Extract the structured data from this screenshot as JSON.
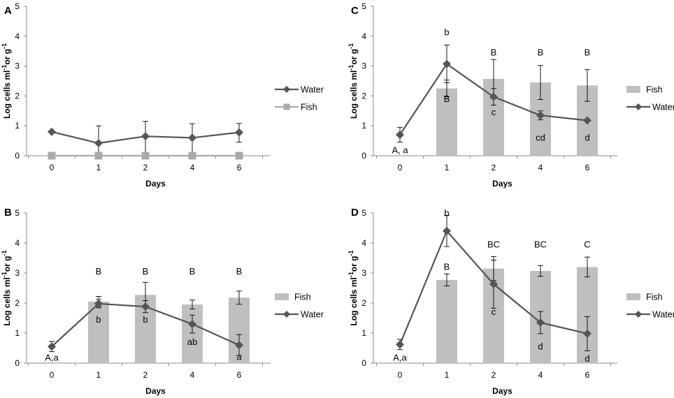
{
  "chart_data": [
    {
      "panel": "A",
      "type": "line",
      "categories": [
        "0",
        "1",
        "2",
        "4",
        "6"
      ],
      "xlabel": "Days",
      "ylabel_main": "Log cells ml",
      "ylabel_sup1": "-1",
      "ylabel_mid": "or g",
      "ylabel_sup2": "-1",
      "ylim": [
        0,
        5
      ],
      "yticks": [
        "0",
        "1",
        "2",
        "3",
        "4",
        "5"
      ],
      "legend_position": "right",
      "series": [
        {
          "name": "Water",
          "kind": "line",
          "marker": "diamond",
          "color": "#555555",
          "values": [
            0.8,
            0.42,
            0.65,
            0.6,
            0.78
          ],
          "err_up": [
            0.0,
            0.58,
            0.5,
            0.47,
            0.3
          ],
          "err_down": [
            0.0,
            0.42,
            0.6,
            0.6,
            0.33
          ]
        },
        {
          "name": "Fish",
          "kind": "line",
          "marker": "square",
          "color": "#aaaaaa",
          "values": [
            0,
            0,
            0,
            0,
            0
          ]
        }
      ],
      "annotations": []
    },
    {
      "panel": "B",
      "type": "bar+line",
      "categories": [
        "0",
        "1",
        "2",
        "4",
        "6"
      ],
      "xlabel": "Days",
      "ylabel_main": "Log cells ml",
      "ylabel_sup1": "-1",
      "ylabel_mid": "or g",
      "ylabel_sup2": "-1",
      "ylim": [
        0,
        5
      ],
      "yticks": [
        "0",
        "1",
        "2",
        "3",
        "4",
        "5"
      ],
      "legend_position": "right",
      "series": [
        {
          "name": "Fish",
          "kind": "bar",
          "color": "#bfbfbf",
          "values": [
            null,
            2.05,
            2.27,
            1.95,
            2.18
          ],
          "err_up": [
            null,
            0.17,
            0.42,
            0.15,
            0.22
          ],
          "err_down": [
            null,
            0.17,
            0.42,
            0.15,
            0.22
          ]
        },
        {
          "name": "Water",
          "kind": "line",
          "marker": "diamond",
          "color": "#555555",
          "values": [
            0.55,
            1.98,
            1.88,
            1.3,
            0.6
          ],
          "err_up": [
            0.17,
            0.14,
            0.2,
            0.3,
            0.35
          ],
          "err_down": [
            0.17,
            0.14,
            0.2,
            0.3,
            0.35
          ]
        }
      ],
      "annotations": [
        {
          "x": "0",
          "y": 0.08,
          "text": "A,a"
        },
        {
          "x": "1",
          "y": 2.95,
          "text": "B"
        },
        {
          "x": "2",
          "y": 2.95,
          "text": "B"
        },
        {
          "x": "4",
          "y": 2.95,
          "text": "B"
        },
        {
          "x": "6",
          "y": 2.95,
          "text": "B"
        },
        {
          "x": "1",
          "y": 1.35,
          "text": "b"
        },
        {
          "x": "2",
          "y": 1.35,
          "text": "b"
        },
        {
          "x": "4",
          "y": 0.6,
          "text": "ab"
        },
        {
          "x": "6",
          "y": 0.1,
          "text": "a"
        }
      ]
    },
    {
      "panel": "C",
      "type": "bar+line",
      "categories": [
        "0",
        "1",
        "2",
        "4",
        "6"
      ],
      "xlabel": "Days",
      "ylabel_main": "Log cells ml",
      "ylabel_sup1": "-1",
      "ylabel_mid": "or g",
      "ylabel_sup2": "-1",
      "ylim": [
        0,
        5
      ],
      "yticks": [
        "0",
        "1",
        "2",
        "3",
        "4",
        "5"
      ],
      "legend_position": "right",
      "series": [
        {
          "name": "Fish",
          "kind": "bar",
          "color": "#bfbfbf",
          "values": [
            null,
            2.25,
            2.57,
            2.45,
            2.35
          ],
          "err_up": [
            null,
            0.28,
            0.65,
            0.57,
            0.53
          ],
          "err_down": [
            null,
            0.28,
            0.65,
            0.57,
            0.53
          ]
        },
        {
          "name": "Water",
          "kind": "line",
          "marker": "diamond",
          "color": "#555555",
          "values": [
            0.7,
            3.07,
            1.97,
            1.35,
            1.18
          ],
          "err_up": [
            0.25,
            0.63,
            0.28,
            0.15,
            0.0
          ],
          "err_down": [
            0.25,
            0.63,
            0.28,
            0.15,
            0.0
          ]
        }
      ],
      "annotations": [
        {
          "x": "0",
          "y": 0.08,
          "text": "A, a"
        },
        {
          "x": "1",
          "y": 4.03,
          "text": "b"
        },
        {
          "x": "2",
          "y": 3.35,
          "text": "B"
        },
        {
          "x": "4",
          "y": 3.35,
          "text": "B"
        },
        {
          "x": "6",
          "y": 3.35,
          "text": "B"
        },
        {
          "x": "1",
          "y": 1.8,
          "text": "B"
        },
        {
          "x": "2",
          "y": 1.35,
          "text": "c"
        },
        {
          "x": "4",
          "y": 0.5,
          "text": "cd"
        },
        {
          "x": "6",
          "y": 0.5,
          "text": "d"
        }
      ]
    },
    {
      "panel": "D",
      "type": "bar+line",
      "categories": [
        "0",
        "1",
        "2",
        "4",
        "6"
      ],
      "xlabel": "Days",
      "ylabel_main": "Log cells ml",
      "ylabel_sup1": "-1",
      "ylabel_mid": "or g",
      "ylabel_sup2": "-1",
      "ylim": [
        0,
        5
      ],
      "yticks": [
        "0",
        "1",
        "2",
        "3",
        "4",
        "5"
      ],
      "legend_position": "right",
      "series": [
        {
          "name": "Fish",
          "kind": "bar",
          "color": "#bfbfbf",
          "values": [
            null,
            2.77,
            3.15,
            3.07,
            3.2
          ],
          "err_up": [
            null,
            0.2,
            0.4,
            0.18,
            0.33
          ],
          "err_down": [
            null,
            0.2,
            0.4,
            0.18,
            0.33
          ]
        },
        {
          "name": "Water",
          "kind": "line",
          "marker": "diamond",
          "color": "#555555",
          "values": [
            0.62,
            4.4,
            2.63,
            1.35,
            0.98
          ],
          "err_up": [
            0.17,
            0.52,
            0.8,
            0.37,
            0.57
          ],
          "err_down": [
            0.17,
            0.52,
            0.8,
            0.37,
            0.57
          ]
        }
      ],
      "annotations": [
        {
          "x": "0",
          "y": 0.08,
          "text": "A,a"
        },
        {
          "x": "1",
          "y": 4.9,
          "text": "b"
        },
        {
          "x": "2",
          "y": 3.85,
          "text": "BC"
        },
        {
          "x": "4",
          "y": 3.85,
          "text": "BC"
        },
        {
          "x": "6",
          "y": 3.85,
          "text": "C"
        },
        {
          "x": "1",
          "y": 3.1,
          "text": "B"
        },
        {
          "x": "2",
          "y": 1.6,
          "text": "c"
        },
        {
          "x": "4",
          "y": 0.45,
          "text": "d"
        },
        {
          "x": "6",
          "y": 0.05,
          "text": "d"
        }
      ]
    }
  ]
}
